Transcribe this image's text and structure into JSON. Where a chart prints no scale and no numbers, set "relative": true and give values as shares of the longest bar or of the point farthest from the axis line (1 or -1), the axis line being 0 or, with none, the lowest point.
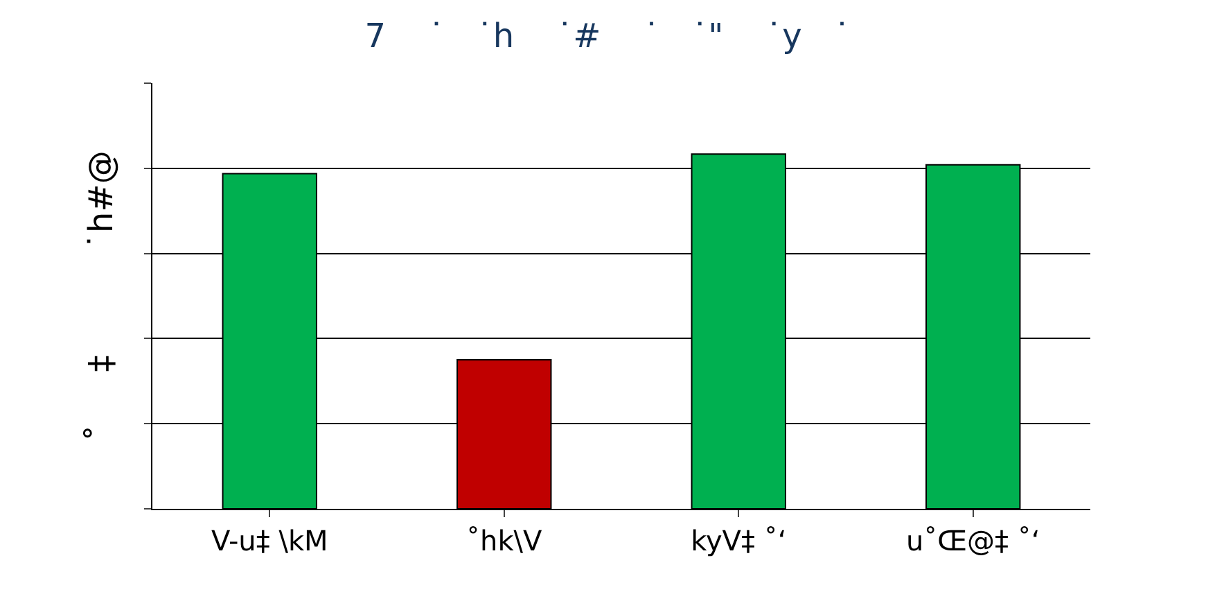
{
  "chart_data": {
    "type": "bar",
    "title": "7    ˙   ˙h    ˙#    ˙   ˙\"    ˙y   ˙",
    "ylabel": "˚     ‡          ˙h#@",
    "relative": true,
    "grid": "y",
    "categories": [
      "V-u‡ \\kM",
      "˚hk\\V",
      "kyV‡ ˚‘",
      "u˚Œ@‡ ˚‘"
    ],
    "values": [
      0.945,
      0.42,
      1,
      0.97
    ],
    "colors": [
      "#00b050",
      "#c00000",
      "#00b050",
      "#00b050"
    ]
  }
}
